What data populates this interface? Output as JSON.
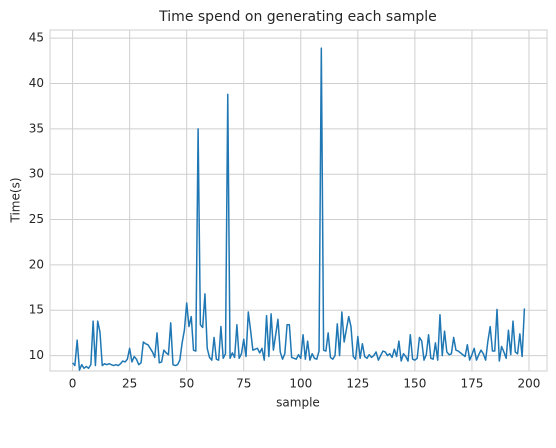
{
  "chart_data": {
    "type": "line",
    "title": "Time spend on generating each sample",
    "xlabel": "sample",
    "ylabel": "Time(s)",
    "x": [
      0,
      1,
      2,
      3,
      4,
      5,
      6,
      7,
      8,
      9,
      10,
      11,
      12,
      13,
      14,
      15,
      16,
      17,
      18,
      19,
      20,
      21,
      22,
      23,
      24,
      25,
      26,
      27,
      28,
      29,
      30,
      31,
      32,
      33,
      34,
      35,
      36,
      37,
      38,
      39,
      40,
      41,
      42,
      43,
      44,
      45,
      46,
      47,
      48,
      49,
      50,
      51,
      52,
      53,
      54,
      55,
      56,
      57,
      58,
      59,
      60,
      61,
      62,
      63,
      64,
      65,
      66,
      67,
      68,
      69,
      70,
      71,
      72,
      73,
      74,
      75,
      76,
      77,
      78,
      79,
      80,
      81,
      82,
      83,
      84,
      85,
      86,
      87,
      88,
      89,
      90,
      91,
      92,
      93,
      94,
      95,
      96,
      97,
      98,
      99,
      100,
      101,
      102,
      103,
      104,
      105,
      106,
      107,
      108,
      109,
      110,
      111,
      112,
      113,
      114,
      115,
      116,
      117,
      118,
      119,
      120,
      121,
      122,
      123,
      124,
      125,
      126,
      127,
      128,
      129,
      130,
      131,
      132,
      133,
      134,
      135,
      136,
      137,
      138,
      139,
      140,
      141,
      142,
      143,
      144,
      145,
      146,
      147,
      148,
      149,
      150,
      151,
      152,
      153,
      154,
      155,
      156,
      157,
      158,
      159,
      160,
      161,
      162,
      163,
      164,
      165,
      166,
      167,
      168,
      169,
      170,
      171,
      172,
      173,
      174,
      175,
      176,
      177,
      178,
      179,
      180,
      181,
      182,
      183,
      184,
      185,
      186,
      187,
      188,
      189,
      190,
      191,
      192,
      193,
      194,
      195,
      196,
      197,
      198
    ],
    "series": [
      {
        "name": "time",
        "color": "#1f77b4",
        "values": [
          9.2,
          8.9,
          11.7,
          8.4,
          9.0,
          8.6,
          8.8,
          8.6,
          9.0,
          13.8,
          8.9,
          13.8,
          12.6,
          8.9,
          9.1,
          9.0,
          9.1,
          9.0,
          8.9,
          9.0,
          8.9,
          9.1,
          9.4,
          9.3,
          9.6,
          10.8,
          9.3,
          9.9,
          9.6,
          9.0,
          9.2,
          11.5,
          11.3,
          11.2,
          10.8,
          10.4,
          9.8,
          12.5,
          9.2,
          9.3,
          10.6,
          10.3,
          10.1,
          13.6,
          9.0,
          8.9,
          9.0,
          9.5,
          11.4,
          12.8,
          15.8,
          13.2,
          14.3,
          10.6,
          10.5,
          35.0,
          13.4,
          13.1,
          16.8,
          10.8,
          9.8,
          9.5,
          12.0,
          9.6,
          9.5,
          13.2,
          9.7,
          10.2,
          38.8,
          9.7,
          10.3,
          9.8,
          13.4,
          9.7,
          10.2,
          11.8,
          9.9,
          14.8,
          12.8,
          10.6,
          10.7,
          10.8,
          10.3,
          10.8,
          9.5,
          14.4,
          9.9,
          14.6,
          10.6,
          12.3,
          14.0,
          10.4,
          9.6,
          10.2,
          13.4,
          13.4,
          9.8,
          9.7,
          9.6,
          10.1,
          9.7,
          12.3,
          9.6,
          11.6,
          9.5,
          10.2,
          9.7,
          9.6,
          10.5,
          43.9,
          10.6,
          10.5,
          12.5,
          9.8,
          9.6,
          10.0,
          13.5,
          10.0,
          14.8,
          11.5,
          12.9,
          14.3,
          13.2,
          9.9,
          9.6,
          12.1,
          9.7,
          11.3,
          9.9,
          9.7,
          10.1,
          9.8,
          10.0,
          10.4,
          9.5,
          10.0,
          10.5,
          10.4,
          10.0,
          10.2,
          9.8,
          10.7,
          9.9,
          11.6,
          9.4,
          10.2,
          9.9,
          9.4,
          12.3,
          9.6,
          9.5,
          9.7,
          12.0,
          11.6,
          9.5,
          10.1,
          12.3,
          9.7,
          9.6,
          11.4,
          9.5,
          14.5,
          10.0,
          12.7,
          10.4,
          10.1,
          10.2,
          12.0,
          10.6,
          10.5,
          10.3,
          10.1,
          9.9,
          11.2,
          9.5,
          10.1,
          10.8,
          9.5,
          10.1,
          10.6,
          10.2,
          9.5,
          11.6,
          13.2,
          10.5,
          10.5,
          15.1,
          9.4,
          11.0,
          10.4,
          9.7,
          12.8,
          10.1,
          13.8,
          10.4,
          10.2,
          12.4,
          9.9,
          15.2
        ]
      }
    ],
    "xlim": [
      -9.9,
      207.9
    ],
    "xticks": [
      0,
      25,
      50,
      75,
      100,
      125,
      150,
      175,
      200
    ],
    "ylim": [
      8.3,
      45.9
    ],
    "yticks": [
      10,
      15,
      20,
      25,
      30,
      35,
      40,
      45
    ],
    "grid": true
  }
}
